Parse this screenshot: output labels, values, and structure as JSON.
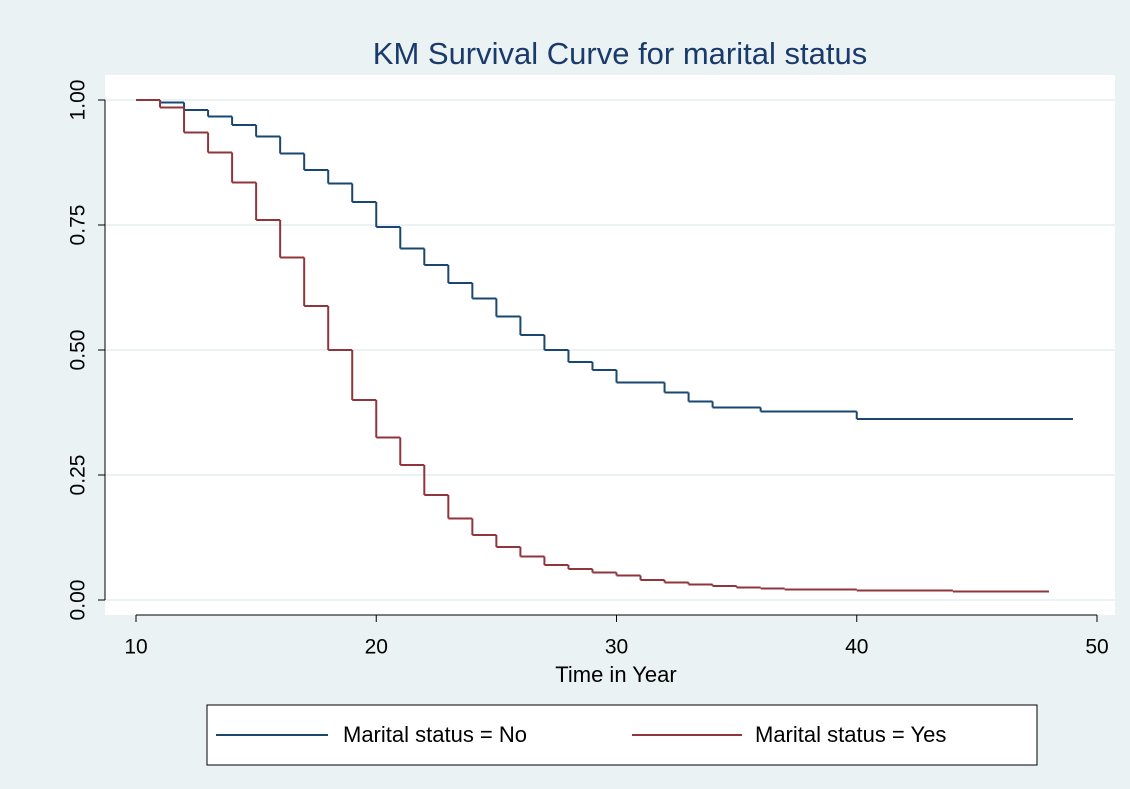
{
  "chart_data": {
    "type": "step",
    "title": "KM Survival Curve for marital status",
    "x_label": "Time in Year",
    "xlim": [
      10,
      50
    ],
    "xticks": [
      10,
      20,
      30,
      40,
      50
    ],
    "ylim": [
      0,
      1
    ],
    "yticks": [
      {
        "value": 0,
        "label": "0.00"
      },
      {
        "value": 0.25,
        "label": "0.25"
      },
      {
        "value": 0.5,
        "label": "0.50"
      },
      {
        "value": 0.75,
        "label": "0.75"
      },
      {
        "value": 1,
        "label": "1.00"
      }
    ],
    "grid": true,
    "legend": "bottom",
    "series": [
      {
        "name": "Marital status = No",
        "color": "#1a476f",
        "x": [
          10,
          11,
          12,
          13,
          14,
          15,
          16,
          17,
          18,
          19,
          20,
          21,
          22,
          23,
          24,
          25,
          26,
          27,
          28,
          29,
          30,
          32,
          33,
          34,
          36,
          40,
          49
        ],
        "values": [
          1.0,
          0.995,
          0.98,
          0.967,
          0.95,
          0.927,
          0.893,
          0.86,
          0.833,
          0.796,
          0.746,
          0.703,
          0.67,
          0.634,
          0.603,
          0.567,
          0.53,
          0.5,
          0.476,
          0.46,
          0.435,
          0.415,
          0.397,
          0.385,
          0.377,
          0.362,
          0.362
        ]
      },
      {
        "name": "Marital status = Yes",
        "color": "#90353b",
        "x": [
          10,
          11,
          12,
          13,
          14,
          15,
          16,
          17,
          18,
          19,
          20,
          21,
          22,
          23,
          24,
          25,
          26,
          27,
          28,
          29,
          30,
          31,
          32,
          33,
          34,
          35,
          36,
          37,
          40,
          44,
          48
        ],
        "values": [
          1.0,
          0.985,
          0.935,
          0.895,
          0.835,
          0.76,
          0.685,
          0.588,
          0.5,
          0.4,
          0.325,
          0.27,
          0.21,
          0.163,
          0.13,
          0.106,
          0.087,
          0.07,
          0.062,
          0.055,
          0.049,
          0.04,
          0.035,
          0.031,
          0.028,
          0.025,
          0.023,
          0.021,
          0.019,
          0.017,
          0.017
        ]
      }
    ]
  }
}
